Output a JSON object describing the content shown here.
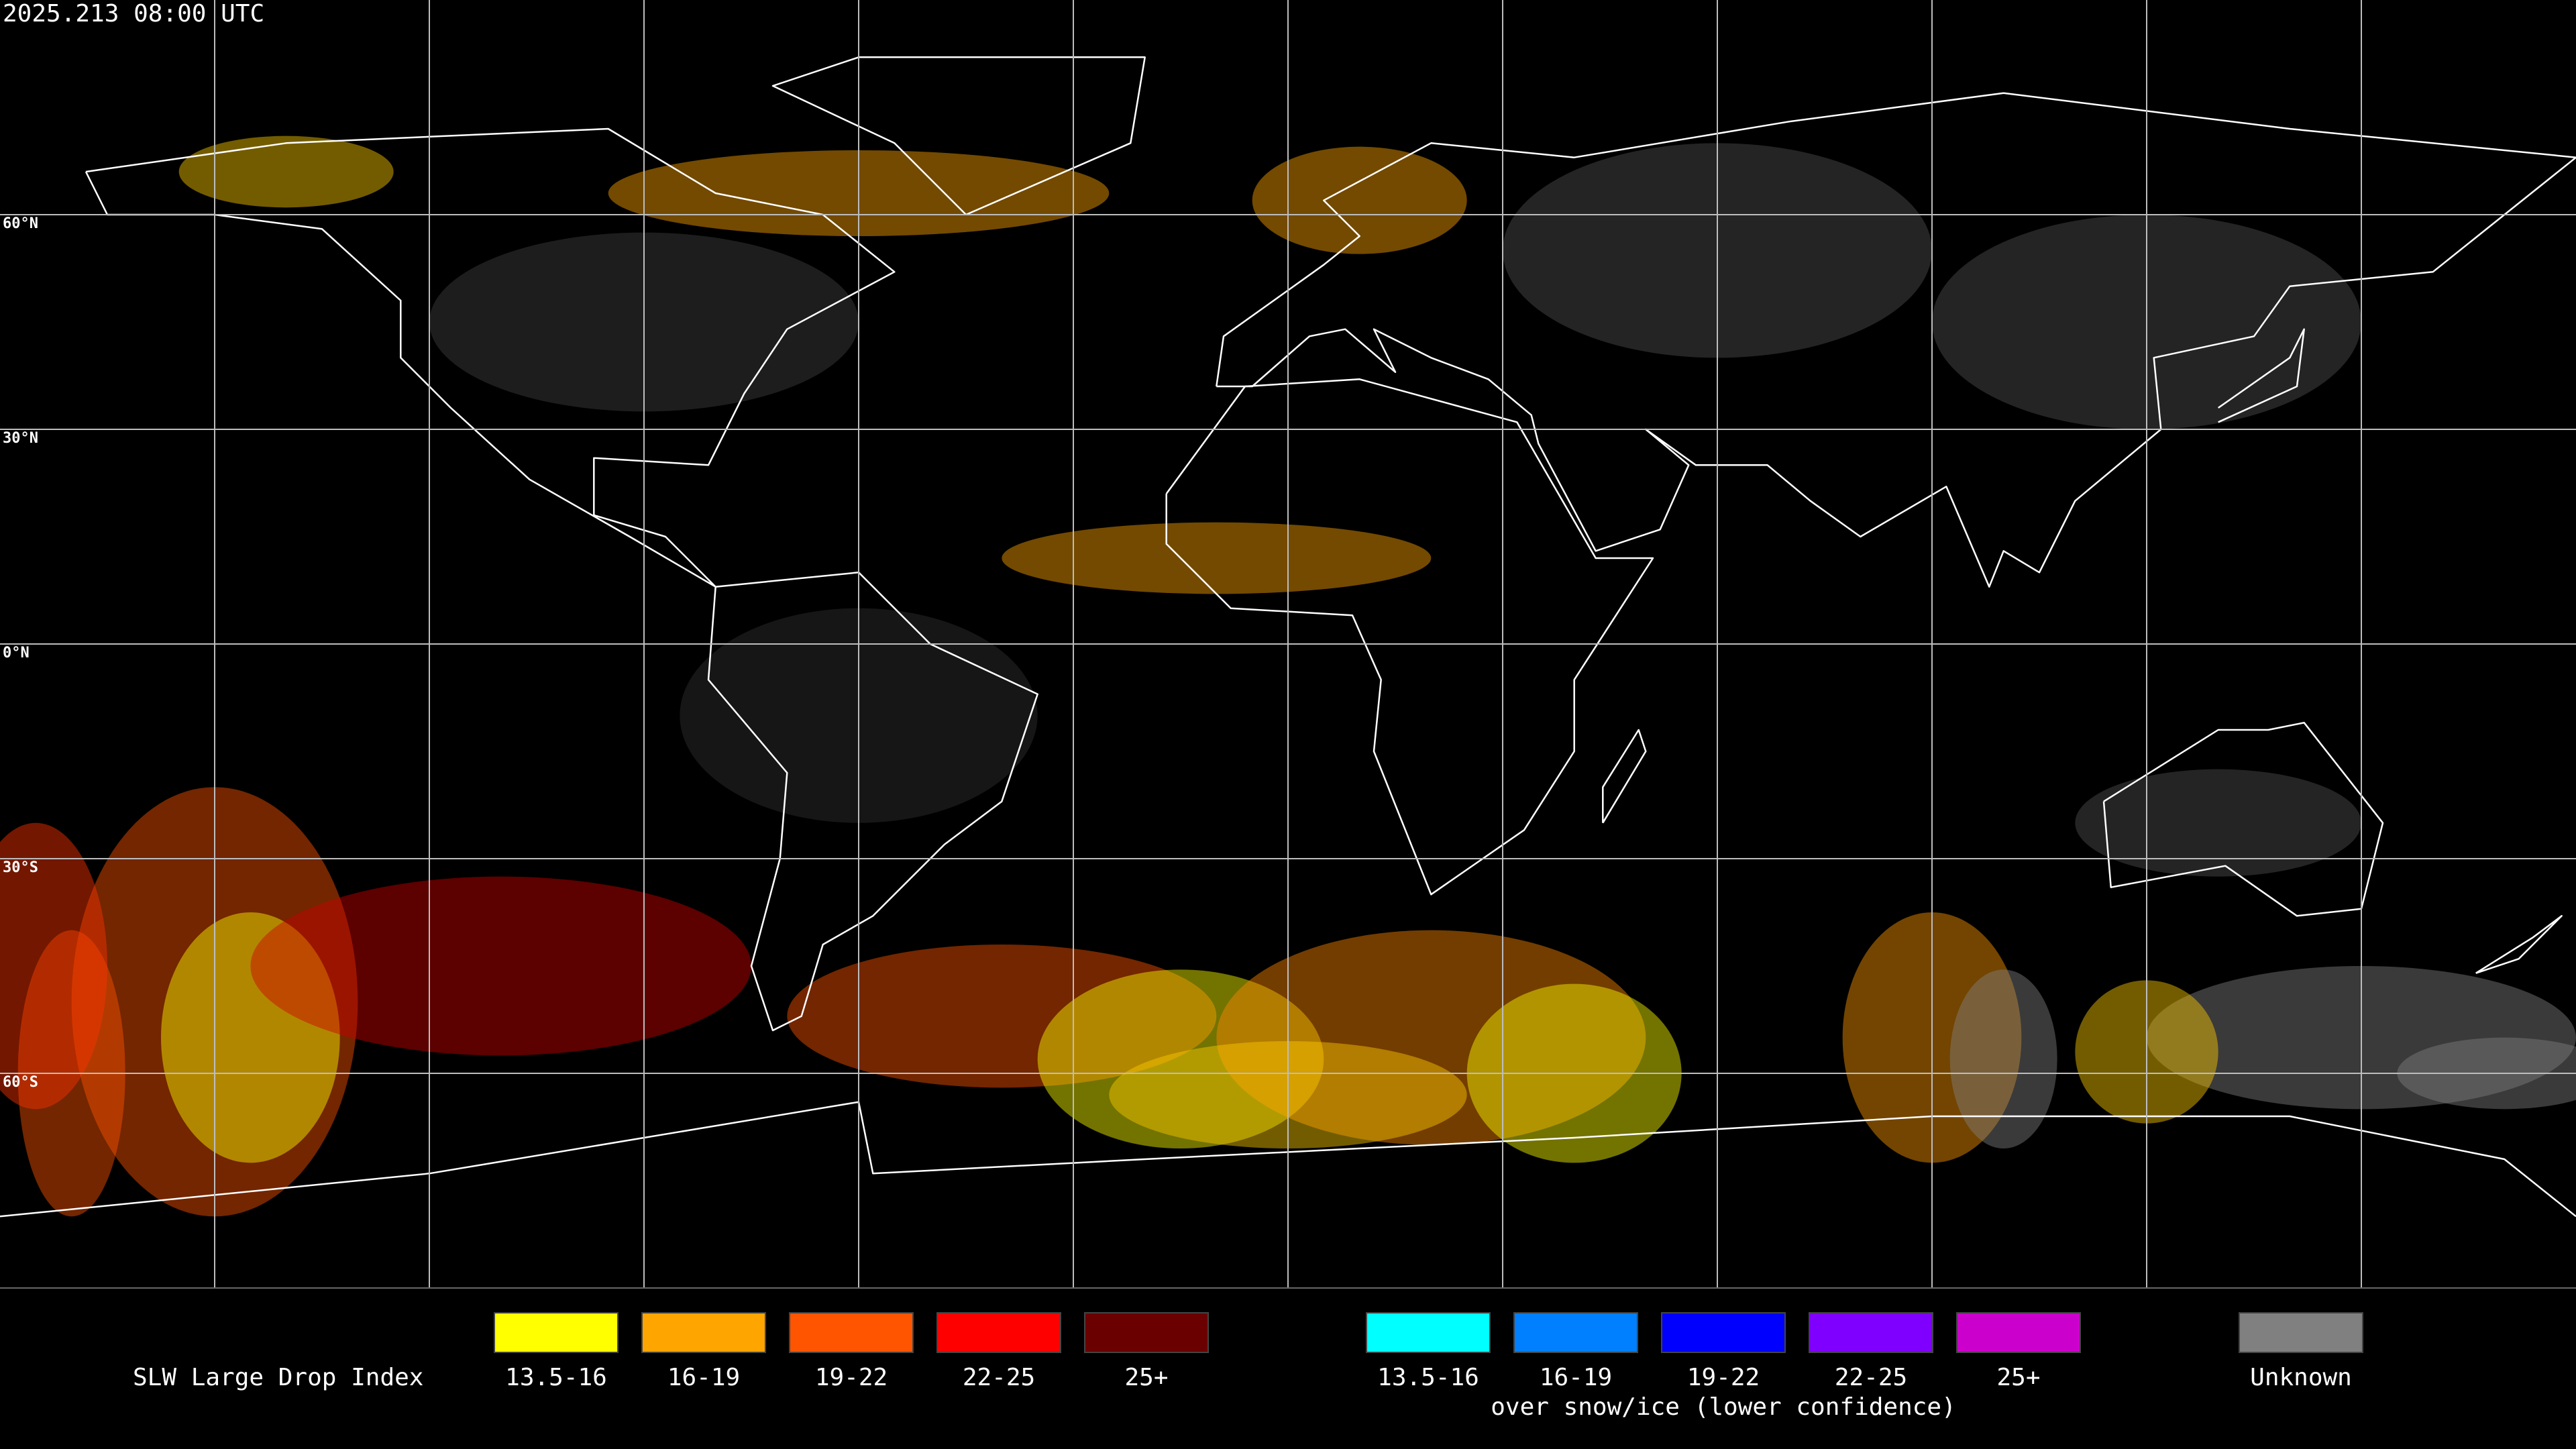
{
  "header": {
    "timestamp": "2025.213 08:00 UTC"
  },
  "map": {
    "lat_labels": [
      "60°N",
      "30°N",
      "0°N",
      "30°S",
      "60°S"
    ]
  },
  "legend": {
    "title": "SLW Large Drop Index",
    "items": [
      {
        "label": "13.5-16",
        "color": "#ffff00"
      },
      {
        "label": "16-19",
        "color": "#ffa500"
      },
      {
        "label": "19-22",
        "color": "#ff5500"
      },
      {
        "label": "22-25",
        "color": "#ff0000"
      },
      {
        "label": "25+",
        "color": "#6a0000"
      }
    ],
    "snow_items": [
      {
        "label": "13.5-16",
        "color": "#00ffff"
      },
      {
        "label": "16-19",
        "color": "#0080ff"
      },
      {
        "label": "19-22",
        "color": "#0000ff"
      },
      {
        "label": "22-25",
        "color": "#8000ff"
      },
      {
        "label": "25+",
        "color": "#cc00cc"
      }
    ],
    "snow_note": "over snow/ice (lower confidence)",
    "unknown": {
      "label": "Unknown",
      "color": "#808080"
    }
  }
}
